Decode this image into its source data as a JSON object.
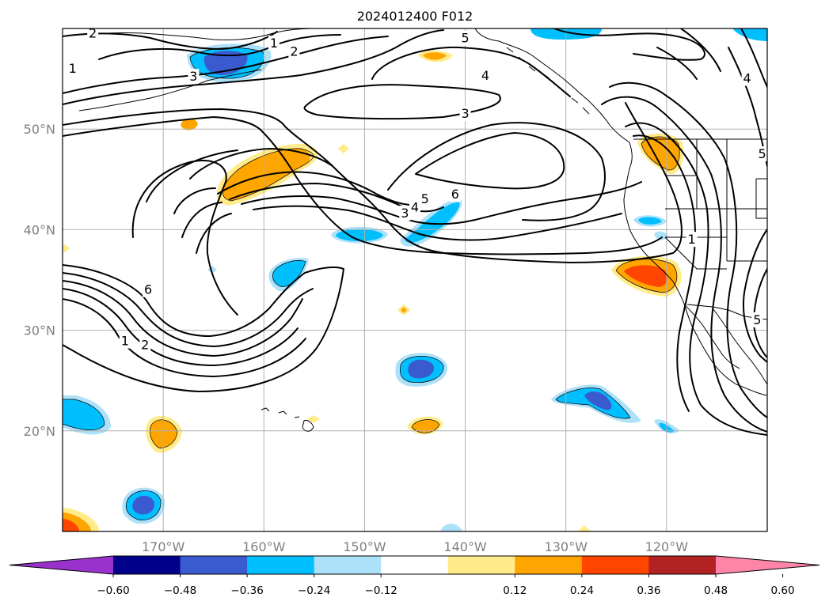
{
  "title": "2024012400 F012",
  "map": {
    "lon_range": [
      -180,
      -110
    ],
    "lat_range": [
      10,
      60
    ],
    "grid": true,
    "lon_ticks": [
      {
        "value": -170,
        "label": "170°W"
      },
      {
        "value": -160,
        "label": "160°W"
      },
      {
        "value": -150,
        "label": "150°W"
      },
      {
        "value": -140,
        "label": "140°W"
      },
      {
        "value": -130,
        "label": "130°W"
      },
      {
        "value": -120,
        "label": "120°W"
      }
    ],
    "lat_ticks": [
      {
        "value": 50,
        "label": "50°N"
      },
      {
        "value": 40,
        "label": "40°N"
      },
      {
        "value": 30,
        "label": "30°N"
      },
      {
        "value": 20,
        "label": "20°N"
      }
    ]
  },
  "colorbar": {
    "orientation": "horizontal",
    "extend": "both",
    "colors": [
      "#9932cc",
      "#00008b",
      "#3a5bd0",
      "#00bfff",
      "#ade1f9",
      "#ffffff",
      "#ffeb8a",
      "#ffa500",
      "#ff4500",
      "#b22222",
      "#ff85a8"
    ],
    "ticks": [
      "−0.60",
      "−0.48",
      "−0.36",
      "−0.24",
      "−0.12",
      "0.12",
      "0.24",
      "0.36",
      "0.48",
      "0.60"
    ]
  },
  "contour_labels": [
    {
      "text": "2",
      "lon": -177.0,
      "lat": 59.5
    },
    {
      "text": "1",
      "lon": -159.0,
      "lat": 58.5
    },
    {
      "text": "2",
      "lon": -157.0,
      "lat": 57.7
    },
    {
      "text": "3",
      "lon": -167.0,
      "lat": 55.2
    },
    {
      "text": "1",
      "lon": -179.0,
      "lat": 56.0
    },
    {
      "text": "5",
      "lon": -140.0,
      "lat": 59.0
    },
    {
      "text": "4",
      "lon": -138.0,
      "lat": 55.3
    },
    {
      "text": "3",
      "lon": -140.0,
      "lat": 51.5
    },
    {
      "text": "5",
      "lon": -144.0,
      "lat": 43.0
    },
    {
      "text": "4",
      "lon": -145.0,
      "lat": 42.2
    },
    {
      "text": "3",
      "lon": -146.0,
      "lat": 41.6
    },
    {
      "text": "6",
      "lon": -141.0,
      "lat": 43.5
    },
    {
      "text": "6",
      "lon": -171.5,
      "lat": 34.0
    },
    {
      "text": "1",
      "lon": -173.8,
      "lat": 28.9
    },
    {
      "text": "2",
      "lon": -171.8,
      "lat": 28.5
    },
    {
      "text": "1",
      "lon": -117.5,
      "lat": 39.0
    },
    {
      "text": "5",
      "lon": -111.0,
      "lat": 31.0
    },
    {
      "text": "4",
      "lon": -112.0,
      "lat": 55.0
    },
    {
      "text": "5",
      "lon": -110.5,
      "lat": 47.5
    }
  ]
}
